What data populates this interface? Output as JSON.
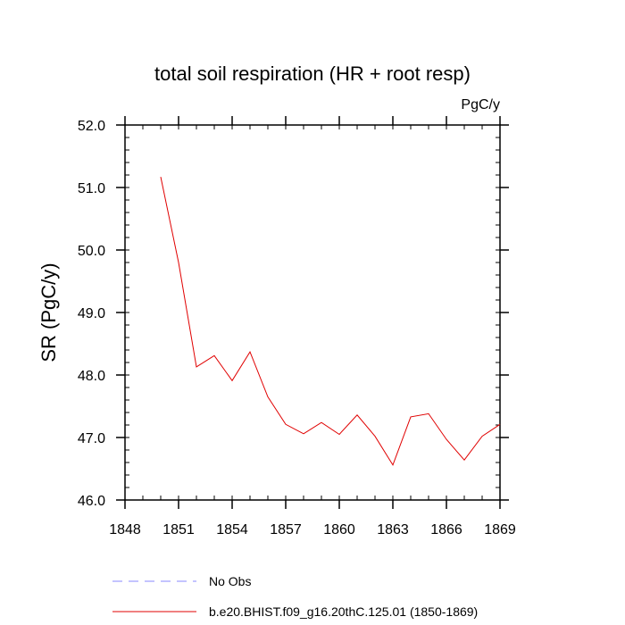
{
  "chart_data": {
    "type": "line",
    "title": "total soil respiration (HR + root resp)",
    "units_label": "PgC/y",
    "xlabel": "",
    "ylabel": "SR  (PgC/y)",
    "xlim": [
      1848,
      1869
    ],
    "ylim": [
      46.0,
      52.0
    ],
    "x_ticks": [
      1848,
      1851,
      1854,
      1857,
      1860,
      1863,
      1866,
      1869
    ],
    "x_tick_labels": [
      "1848",
      "1851",
      "1854",
      "1857",
      "1860",
      "1863",
      "1866",
      "1869"
    ],
    "y_ticks": [
      46.0,
      47.0,
      48.0,
      49.0,
      50.0,
      51.0,
      52.0
    ],
    "y_tick_labels": [
      "46.0",
      "47.0",
      "48.0",
      "49.0",
      "50.0",
      "51.0",
      "52.0"
    ],
    "series": [
      {
        "name": "b.e20.BHIST.f09_g16.20thC.125.01 (1850-1869)",
        "color": "#e00000",
        "x": [
          1850,
          1851,
          1852,
          1853,
          1854,
          1855,
          1856,
          1857,
          1858,
          1859,
          1860,
          1861,
          1862,
          1863,
          1864,
          1865,
          1866,
          1867,
          1868,
          1869
        ],
        "values": [
          51.17,
          49.8,
          48.13,
          48.31,
          47.91,
          48.37,
          47.65,
          47.21,
          47.06,
          47.24,
          47.05,
          47.36,
          47.02,
          46.56,
          47.33,
          47.38,
          46.97,
          46.64,
          47.02,
          47.21
        ]
      }
    ],
    "legend": {
      "placement": "bottom",
      "entries": [
        {
          "label": "No Obs",
          "color": "#8888ff",
          "style": "dashed"
        },
        {
          "label": "b.e20.BHIST.f09_g16.20thC.125.01 (1850-1869)",
          "color": "#e00000",
          "style": "solid"
        }
      ]
    }
  }
}
